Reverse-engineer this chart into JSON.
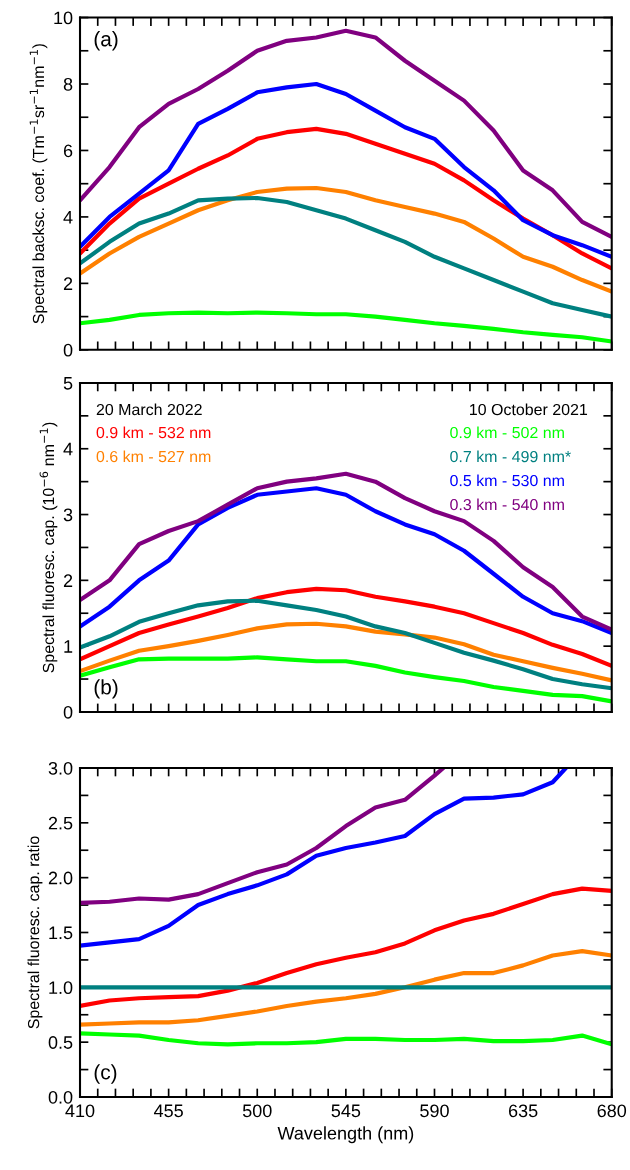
{
  "chart_data": [
    {
      "type": "line",
      "ylabel": "Spectral backsc. coef. (Tm$^{−1}$sr$^{−1}$nm$^{−1}$)",
      "annotations": [
        "(a)"
      ],
      "tick_labels": "y",
      "grid": false,
      "legend": false,
      "x": [
        410,
        425,
        440,
        455,
        470,
        485,
        500,
        515,
        530,
        545,
        560,
        575,
        590,
        605,
        620,
        635,
        650,
        665,
        680
      ],
      "xlim": [
        410,
        680
      ],
      "ylim": [
        0,
        10
      ],
      "xticks": [
        {
          "value": 410,
          "label": null
        },
        {
          "value": 419,
          "label": null
        },
        {
          "value": 428,
          "label": null
        },
        {
          "value": 437,
          "label": null
        },
        {
          "value": 446,
          "label": null
        },
        {
          "value": 455,
          "label": null
        },
        {
          "value": 464,
          "label": null
        },
        {
          "value": 473,
          "label": null
        },
        {
          "value": 482,
          "label": null
        },
        {
          "value": 491,
          "label": null
        },
        {
          "value": 500,
          "label": null
        },
        {
          "value": 509,
          "label": null
        },
        {
          "value": 518,
          "label": null
        },
        {
          "value": 527,
          "label": null
        },
        {
          "value": 536,
          "label": null
        },
        {
          "value": 545,
          "label": null
        },
        {
          "value": 554,
          "label": null
        },
        {
          "value": 563,
          "label": null
        },
        {
          "value": 572,
          "label": null
        },
        {
          "value": 581,
          "label": null
        },
        {
          "value": 590,
          "label": null
        },
        {
          "value": 599,
          "label": null
        },
        {
          "value": 608,
          "label": null
        },
        {
          "value": 617,
          "label": null
        },
        {
          "value": 626,
          "label": null
        },
        {
          "value": 635,
          "label": null
        },
        {
          "value": 644,
          "label": null
        },
        {
          "value": 653,
          "label": null
        },
        {
          "value": 662,
          "label": null
        },
        {
          "value": 671,
          "label": null
        },
        {
          "value": 680,
          "label": null
        }
      ],
      "yticks": [
        0,
        {
          "value": 1,
          "label": null
        },
        2,
        {
          "value": 3,
          "label": null
        },
        4,
        {
          "value": 5,
          "label": null
        },
        6,
        {
          "value": 7,
          "label": null
        },
        8,
        {
          "value": 9,
          "label": null
        },
        10
      ],
      "series": [
        {
          "color": "#ff0000",
          "values": [
            2.9,
            3.8,
            4.55,
            5.0,
            5.45,
            5.85,
            6.35,
            6.55,
            6.65,
            6.5,
            6.2,
            5.9,
            5.6,
            5.1,
            4.5,
            3.95,
            3.45,
            2.9,
            2.45
          ]
        },
        {
          "color": "#ff8000",
          "values": [
            2.3,
            2.9,
            3.4,
            3.8,
            4.2,
            4.5,
            4.75,
            4.85,
            4.87,
            4.75,
            4.5,
            4.3,
            4.1,
            3.85,
            3.35,
            2.8,
            2.5,
            2.1,
            1.75
          ]
        },
        {
          "color": "#00ff00",
          "values": [
            0.8,
            0.9,
            1.05,
            1.1,
            1.12,
            1.1,
            1.12,
            1.1,
            1.07,
            1.07,
            1.0,
            0.9,
            0.8,
            0.72,
            0.63,
            0.53,
            0.45,
            0.38,
            0.25
          ]
        },
        {
          "color": "#008080",
          "values": [
            2.6,
            3.25,
            3.8,
            4.1,
            4.5,
            4.55,
            4.57,
            4.45,
            4.2,
            3.95,
            3.6,
            3.25,
            2.8,
            2.45,
            2.1,
            1.75,
            1.4,
            1.2,
            1.0
          ]
        },
        {
          "color": "#0000ff",
          "values": [
            3.1,
            4.0,
            4.7,
            5.4,
            6.8,
            7.25,
            7.75,
            7.9,
            8.0,
            7.7,
            7.2,
            6.7,
            6.35,
            5.5,
            4.8,
            3.9,
            3.45,
            3.15,
            2.8
          ]
        },
        {
          "color": "#800080",
          "values": [
            4.5,
            5.5,
            6.7,
            7.4,
            7.85,
            8.4,
            9.0,
            9.3,
            9.4,
            9.6,
            9.4,
            8.7,
            8.1,
            7.5,
            6.6,
            5.4,
            4.8,
            3.85,
            3.4
          ]
        }
      ]
    },
    {
      "type": "line",
      "ylabel": "Spectral fluoresc. cap. (10$^{−6}$ nm$^{−1}$)",
      "annotations": [
        "(b)",
        "20 March 2022",
        "10 October 2021"
      ],
      "tick_labels": "y",
      "grid": false,
      "legend": "top",
      "x": [
        410,
        425,
        440,
        455,
        470,
        485,
        500,
        515,
        530,
        545,
        560,
        575,
        590,
        605,
        620,
        635,
        650,
        665,
        680
      ],
      "xlim": [
        410,
        680
      ],
      "ylim": [
        0,
        5
      ],
      "xticks": [
        {
          "value": 410,
          "label": null
        },
        {
          "value": 419,
          "label": null
        },
        {
          "value": 428,
          "label": null
        },
        {
          "value": 437,
          "label": null
        },
        {
          "value": 446,
          "label": null
        },
        {
          "value": 455,
          "label": null
        },
        {
          "value": 464,
          "label": null
        },
        {
          "value": 473,
          "label": null
        },
        {
          "value": 482,
          "label": null
        },
        {
          "value": 491,
          "label": null
        },
        {
          "value": 500,
          "label": null
        },
        {
          "value": 509,
          "label": null
        },
        {
          "value": 518,
          "label": null
        },
        {
          "value": 527,
          "label": null
        },
        {
          "value": 536,
          "label": null
        },
        {
          "value": 545,
          "label": null
        },
        {
          "value": 554,
          "label": null
        },
        {
          "value": 563,
          "label": null
        },
        {
          "value": 572,
          "label": null
        },
        {
          "value": 581,
          "label": null
        },
        {
          "value": 590,
          "label": null
        },
        {
          "value": 599,
          "label": null
        },
        {
          "value": 608,
          "label": null
        },
        {
          "value": 617,
          "label": null
        },
        {
          "value": 626,
          "label": null
        },
        {
          "value": 635,
          "label": null
        },
        {
          "value": 644,
          "label": null
        },
        {
          "value": 653,
          "label": null
        },
        {
          "value": 662,
          "label": null
        },
        {
          "value": 671,
          "label": null
        },
        {
          "value": 680,
          "label": null
        }
      ],
      "yticks": [
        0,
        {
          "value": 0.5,
          "label": null
        },
        1,
        {
          "value": 1.5,
          "label": null
        },
        2,
        {
          "value": 2.5,
          "label": null
        },
        3,
        {
          "value": 3.5,
          "label": null
        },
        4,
        {
          "value": 4.5,
          "label": null
        },
        5
      ],
      "series": [
        {
          "name": "0.9 km - 532 nm",
          "color": "#ff0000",
          "values": [
            0.8,
            1.0,
            1.2,
            1.33,
            1.45,
            1.58,
            1.73,
            1.82,
            1.87,
            1.85,
            1.75,
            1.68,
            1.6,
            1.5,
            1.35,
            1.2,
            1.02,
            0.88,
            0.7
          ]
        },
        {
          "name": "0.6 km - 527 nm",
          "color": "#ff8000",
          "values": [
            0.62,
            0.78,
            0.93,
            1.0,
            1.08,
            1.17,
            1.27,
            1.33,
            1.34,
            1.3,
            1.22,
            1.18,
            1.13,
            1.03,
            0.87,
            0.77,
            0.67,
            0.58,
            0.48
          ]
        },
        {
          "name": "0.9 km - 502 nm",
          "color": "#00ff00",
          "values": [
            0.55,
            0.68,
            0.8,
            0.81,
            0.81,
            0.81,
            0.83,
            0.8,
            0.77,
            0.77,
            0.7,
            0.6,
            0.53,
            0.47,
            0.38,
            0.32,
            0.26,
            0.24,
            0.16
          ]
        },
        {
          "name": "0.7 km - 499 nm*",
          "color": "#008080",
          "values": [
            0.98,
            1.15,
            1.37,
            1.5,
            1.62,
            1.68,
            1.69,
            1.62,
            1.55,
            1.45,
            1.3,
            1.2,
            1.05,
            0.9,
            0.78,
            0.65,
            0.5,
            0.42,
            0.36
          ]
        },
        {
          "name": "0.5 km - 530 nm",
          "color": "#0000ff",
          "values": [
            1.3,
            1.6,
            2.0,
            2.3,
            2.85,
            3.1,
            3.3,
            3.35,
            3.4,
            3.3,
            3.05,
            2.85,
            2.7,
            2.45,
            2.1,
            1.75,
            1.5,
            1.38,
            1.2
          ]
        },
        {
          "name": "0.3 km - 540 nm",
          "color": "#800080",
          "values": [
            1.7,
            2.0,
            2.55,
            2.75,
            2.9,
            3.15,
            3.4,
            3.5,
            3.55,
            3.62,
            3.5,
            3.25,
            3.05,
            2.9,
            2.6,
            2.2,
            1.9,
            1.45,
            1.25
          ]
        }
      ]
    },
    {
      "type": "line",
      "xlabel": "Wavelength (nm)",
      "ylabel": "Spectral fluoresc. cap. ratio",
      "annotations": [
        "(c)"
      ],
      "grid": false,
      "legend": false,
      "x": [
        410,
        425,
        440,
        455,
        470,
        485,
        500,
        515,
        530,
        545,
        560,
        575,
        590,
        605,
        620,
        635,
        650,
        665,
        680
      ],
      "xlim": [
        410,
        680
      ],
      "ylim": [
        0,
        3
      ],
      "xticks": [
        410,
        {
          "value": 419,
          "label": null
        },
        {
          "value": 428,
          "label": null
        },
        {
          "value": 437,
          "label": null
        },
        {
          "value": 446,
          "label": null
        },
        455,
        {
          "value": 464,
          "label": null
        },
        {
          "value": 473,
          "label": null
        },
        {
          "value": 482,
          "label": null
        },
        {
          "value": 491,
          "label": null
        },
        500,
        {
          "value": 509,
          "label": null
        },
        {
          "value": 518,
          "label": null
        },
        {
          "value": 527,
          "label": null
        },
        {
          "value": 536,
          "label": null
        },
        545,
        {
          "value": 554,
          "label": null
        },
        {
          "value": 563,
          "label": null
        },
        {
          "value": 572,
          "label": null
        },
        {
          "value": 581,
          "label": null
        },
        590,
        {
          "value": 599,
          "label": null
        },
        {
          "value": 608,
          "label": null
        },
        {
          "value": 617,
          "label": null
        },
        {
          "value": 626,
          "label": null
        },
        635,
        {
          "value": 644,
          "label": null
        },
        {
          "value": 653,
          "label": null
        },
        {
          "value": 662,
          "label": null
        },
        {
          "value": 671,
          "label": null
        },
        680
      ],
      "yticks": [
        {
          "value": 0,
          "label": "0.0"
        },
        {
          "value": 0.25,
          "label": null
        },
        0.5,
        {
          "value": 0.75,
          "label": null
        },
        {
          "value": 1,
          "label": "1.0"
        },
        {
          "value": 1.25,
          "label": null
        },
        1.5,
        {
          "value": 1.75,
          "label": null
        },
        {
          "value": 2,
          "label": "2.0"
        },
        {
          "value": 2.25,
          "label": null
        },
        2.5,
        {
          "value": 2.75,
          "label": null
        },
        {
          "value": 3,
          "label": "3.0"
        }
      ],
      "series": [
        {
          "color": "#ff0000",
          "values": [
            0.83,
            0.88,
            0.9,
            0.91,
            0.92,
            0.97,
            1.04,
            1.13,
            1.21,
            1.27,
            1.32,
            1.4,
            1.52,
            1.61,
            1.67,
            1.76,
            1.85,
            1.9,
            1.88
          ]
        },
        {
          "color": "#ff8000",
          "values": [
            0.66,
            0.67,
            0.68,
            0.68,
            0.7,
            0.74,
            0.78,
            0.83,
            0.87,
            0.9,
            0.94,
            1.0,
            1.07,
            1.13,
            1.13,
            1.2,
            1.29,
            1.33,
            1.29
          ]
        },
        {
          "color": "#00ff00",
          "values": [
            0.58,
            0.57,
            0.56,
            0.52,
            0.49,
            0.48,
            0.49,
            0.49,
            0.5,
            0.53,
            0.53,
            0.52,
            0.52,
            0.53,
            0.51,
            0.51,
            0.52,
            0.56,
            0.48
          ]
        },
        {
          "color": "#008080",
          "x": [
            410,
            680
          ],
          "values": [
            1.0,
            1.0
          ]
        },
        {
          "color": "#0000ff",
          "x": [
            410,
            425,
            440,
            455,
            470,
            485,
            500,
            515,
            530,
            545,
            560,
            575,
            590,
            605,
            620,
            635,
            650,
            656.7
          ],
          "values": [
            1.38,
            1.41,
            1.44,
            1.56,
            1.75,
            1.85,
            1.93,
            2.03,
            2.2,
            2.27,
            2.32,
            2.38,
            2.58,
            2.72,
            2.73,
            2.76,
            2.87,
            3.0
          ]
        },
        {
          "color": "#800080",
          "x": [
            410,
            425,
            440,
            455,
            470,
            485,
            500,
            515,
            530,
            545,
            560,
            575,
            590,
            594.5
          ],
          "values": [
            1.77,
            1.78,
            1.81,
            1.8,
            1.85,
            1.95,
            2.05,
            2.12,
            2.27,
            2.47,
            2.64,
            2.71,
            2.93,
            3.0
          ]
        }
      ]
    }
  ]
}
